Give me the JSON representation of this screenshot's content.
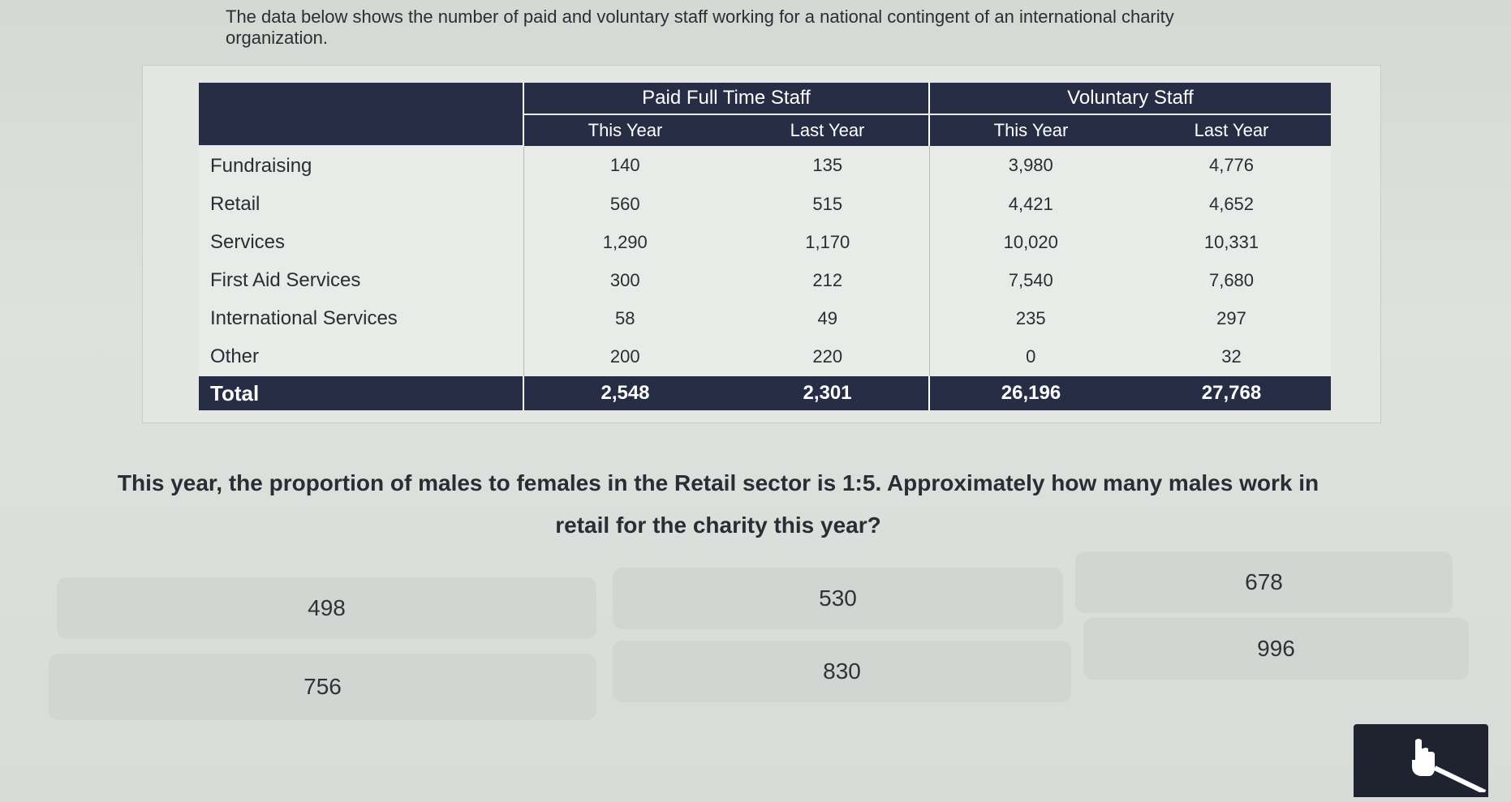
{
  "intro_text": "The data below shows the number of paid and voluntary staff working for a national contingent of an international charity organization.",
  "table": {
    "group_headers": [
      "Paid Full Time Staff",
      "Voluntary Staff"
    ],
    "sub_headers": [
      "This Year",
      "Last Year",
      "This Year",
      "Last Year"
    ],
    "rows": [
      {
        "label": "Fundraising",
        "values": [
          "140",
          "135",
          "3,980",
          "4,776"
        ]
      },
      {
        "label": "Retail",
        "values": [
          "560",
          "515",
          "4,421",
          "4,652"
        ]
      },
      {
        "label": "Services",
        "values": [
          "1,290",
          "1,170",
          "10,020",
          "10,331"
        ]
      },
      {
        "label": "First Aid Services",
        "values": [
          "300",
          "212",
          "7,540",
          "7,680"
        ]
      },
      {
        "label": "International Services",
        "values": [
          "58",
          "49",
          "235",
          "297"
        ]
      },
      {
        "label": "Other",
        "values": [
          "200",
          "220",
          "0",
          "32"
        ]
      }
    ],
    "total": {
      "label": "Total",
      "values": [
        "2,548",
        "2,301",
        "26,196",
        "27,768"
      ]
    }
  },
  "question": "This year, the proportion of males to females in the Retail sector is 1:5. Approximately how many males work in retail for the charity this year?",
  "options": [
    "498",
    "530",
    "678",
    "756",
    "830",
    "996"
  ],
  "colors": {
    "header_bg": "#272d45",
    "option_bg": "#d2d5d1",
    "page_bg": "#dcdedb"
  },
  "icons": {
    "cursor": "hand-pointer-icon"
  }
}
